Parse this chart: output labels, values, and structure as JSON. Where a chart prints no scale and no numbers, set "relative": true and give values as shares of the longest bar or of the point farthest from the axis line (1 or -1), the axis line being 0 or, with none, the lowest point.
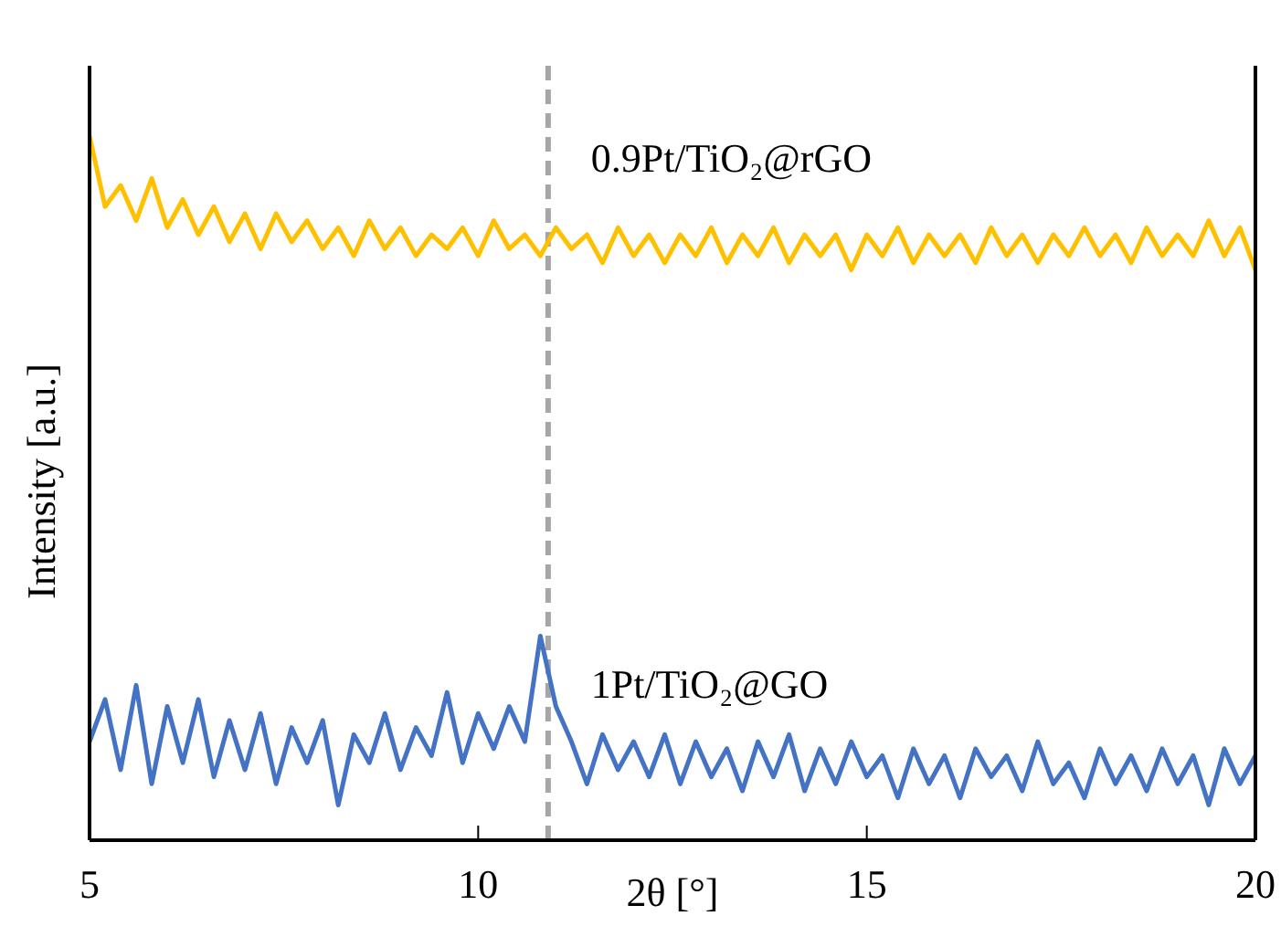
{
  "chart_data": {
    "type": "line",
    "relative": true,
    "xlabel": "2θ [°]",
    "ylabel": "Intensity [a.u.]",
    "xlim": [
      5,
      20
    ],
    "xticks": [
      5,
      10,
      15,
      20
    ],
    "marker": "none",
    "line_style": "solid",
    "x": [
      5.0,
      5.2,
      5.4,
      5.6,
      5.8,
      6.0,
      6.2,
      6.4,
      6.6,
      6.8,
      7.0,
      7.2,
      7.4,
      7.6,
      7.8,
      8.0,
      8.2,
      8.4,
      8.6,
      8.8,
      9.0,
      9.2,
      9.4,
      9.6,
      9.8,
      10.0,
      10.2,
      10.4,
      10.6,
      10.8,
      11.0,
      11.2,
      11.4,
      11.6,
      11.8,
      12.0,
      12.2,
      12.4,
      12.6,
      12.8,
      13.0,
      13.2,
      13.4,
      13.6,
      13.8,
      14.0,
      14.2,
      14.4,
      14.6,
      14.8,
      15.0,
      15.2,
      15.4,
      15.6,
      15.8,
      16.0,
      16.2,
      16.4,
      16.6,
      16.8,
      17.0,
      17.2,
      17.4,
      17.6,
      17.8,
      18.0,
      18.2,
      18.4,
      18.6,
      18.8,
      19.0,
      19.2,
      19.4,
      19.6,
      19.8,
      20.0
    ],
    "series": [
      {
        "name": "0.9Pt/TiO₂@rGO",
        "color": "#ffc000",
        "values": [
          1.0,
          0.9,
          0.93,
          0.88,
          0.94,
          0.87,
          0.91,
          0.86,
          0.9,
          0.85,
          0.89,
          0.84,
          0.89,
          0.85,
          0.88,
          0.84,
          0.87,
          0.83,
          0.88,
          0.84,
          0.87,
          0.83,
          0.86,
          0.84,
          0.87,
          0.83,
          0.88,
          0.84,
          0.86,
          0.83,
          0.87,
          0.84,
          0.86,
          0.82,
          0.87,
          0.83,
          0.86,
          0.82,
          0.86,
          0.83,
          0.87,
          0.82,
          0.86,
          0.83,
          0.87,
          0.82,
          0.86,
          0.83,
          0.86,
          0.81,
          0.86,
          0.83,
          0.87,
          0.82,
          0.86,
          0.83,
          0.86,
          0.82,
          0.87,
          0.83,
          0.86,
          0.82,
          0.86,
          0.83,
          0.87,
          0.83,
          0.86,
          0.82,
          0.87,
          0.83,
          0.86,
          0.83,
          0.88,
          0.83,
          0.87,
          0.81
        ]
      },
      {
        "name": "1Pt/TiO₂@GO",
        "color": "#4472c4",
        "values": [
          0.14,
          0.2,
          0.1,
          0.22,
          0.08,
          0.19,
          0.11,
          0.2,
          0.09,
          0.17,
          0.1,
          0.18,
          0.08,
          0.16,
          0.11,
          0.17,
          0.05,
          0.15,
          0.11,
          0.18,
          0.1,
          0.16,
          0.12,
          0.21,
          0.11,
          0.18,
          0.13,
          0.19,
          0.14,
          0.29,
          0.19,
          0.14,
          0.08,
          0.15,
          0.1,
          0.14,
          0.09,
          0.15,
          0.08,
          0.14,
          0.09,
          0.13,
          0.07,
          0.14,
          0.09,
          0.15,
          0.07,
          0.13,
          0.08,
          0.14,
          0.09,
          0.12,
          0.06,
          0.13,
          0.08,
          0.12,
          0.06,
          0.13,
          0.09,
          0.12,
          0.07,
          0.14,
          0.08,
          0.11,
          0.06,
          0.13,
          0.08,
          0.12,
          0.07,
          0.13,
          0.08,
          0.12,
          0.05,
          0.13,
          0.08,
          0.12
        ]
      }
    ],
    "ref_lines": [
      {
        "axis": "x",
        "value": 10.9,
        "color": "#a6a6a6",
        "line_style": "dashed"
      }
    ]
  }
}
